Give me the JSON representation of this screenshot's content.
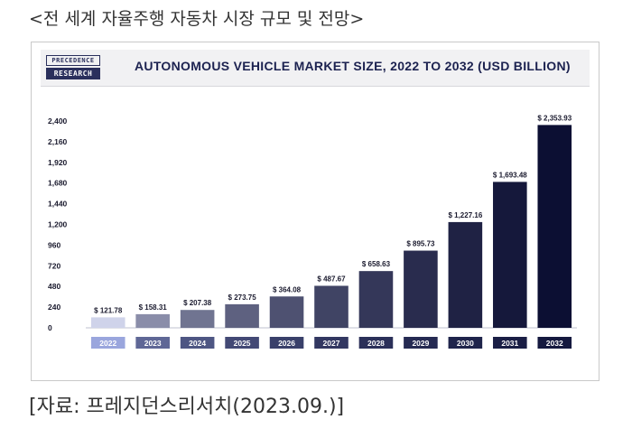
{
  "top_caption": "<전 세계 자율주행 자동차 시장 규모 및 전망>",
  "bottom_caption": "[자료: 프레지던스리서치(2023.09.)]",
  "logo": {
    "line1": "PRECEDENCE",
    "line2": "RESEARCH"
  },
  "chart_data": {
    "type": "bar",
    "title": "AUTONOMOUS VEHICLE MARKET SIZE, 2022 TO 2032 (USD BILLION)",
    "xlabel": "",
    "ylabel": "",
    "categories": [
      "2022",
      "2023",
      "2024",
      "2025",
      "2026",
      "2027",
      "2028",
      "2029",
      "2030",
      "2031",
      "2032"
    ],
    "values": [
      121.78,
      158.31,
      207.38,
      273.75,
      364.08,
      487.67,
      658.63,
      895.73,
      1227.16,
      1693.48,
      2353.93
    ],
    "value_labels": [
      "$ 121.78",
      "$ 158.31",
      "$ 207.38",
      "$ 273.75",
      "$ 364.08",
      "$ 487.67",
      "$ 658.63",
      "$ 895.73",
      "$ 1,227.16",
      "$ 1,693.48",
      "$ 2,353.93"
    ],
    "yticks": [
      0,
      240,
      480,
      720,
      960,
      1200,
      1440,
      1680,
      1920,
      2160,
      2400
    ],
    "ytick_labels": [
      "0",
      "240",
      "480",
      "720",
      "960",
      "1,200",
      "1,440",
      "1,680",
      "1,920",
      "2,160",
      "2,400"
    ],
    "ylim": [
      0,
      2400
    ],
    "grid": false,
    "legend": "none",
    "colors": {
      "bar_light": "#cfd3ea",
      "bar_dark": "#0c0f33",
      "label_first": "#9aa6dd",
      "label_last": "#15193f",
      "title": "#1c2250",
      "text": "#1a1a2e"
    }
  }
}
